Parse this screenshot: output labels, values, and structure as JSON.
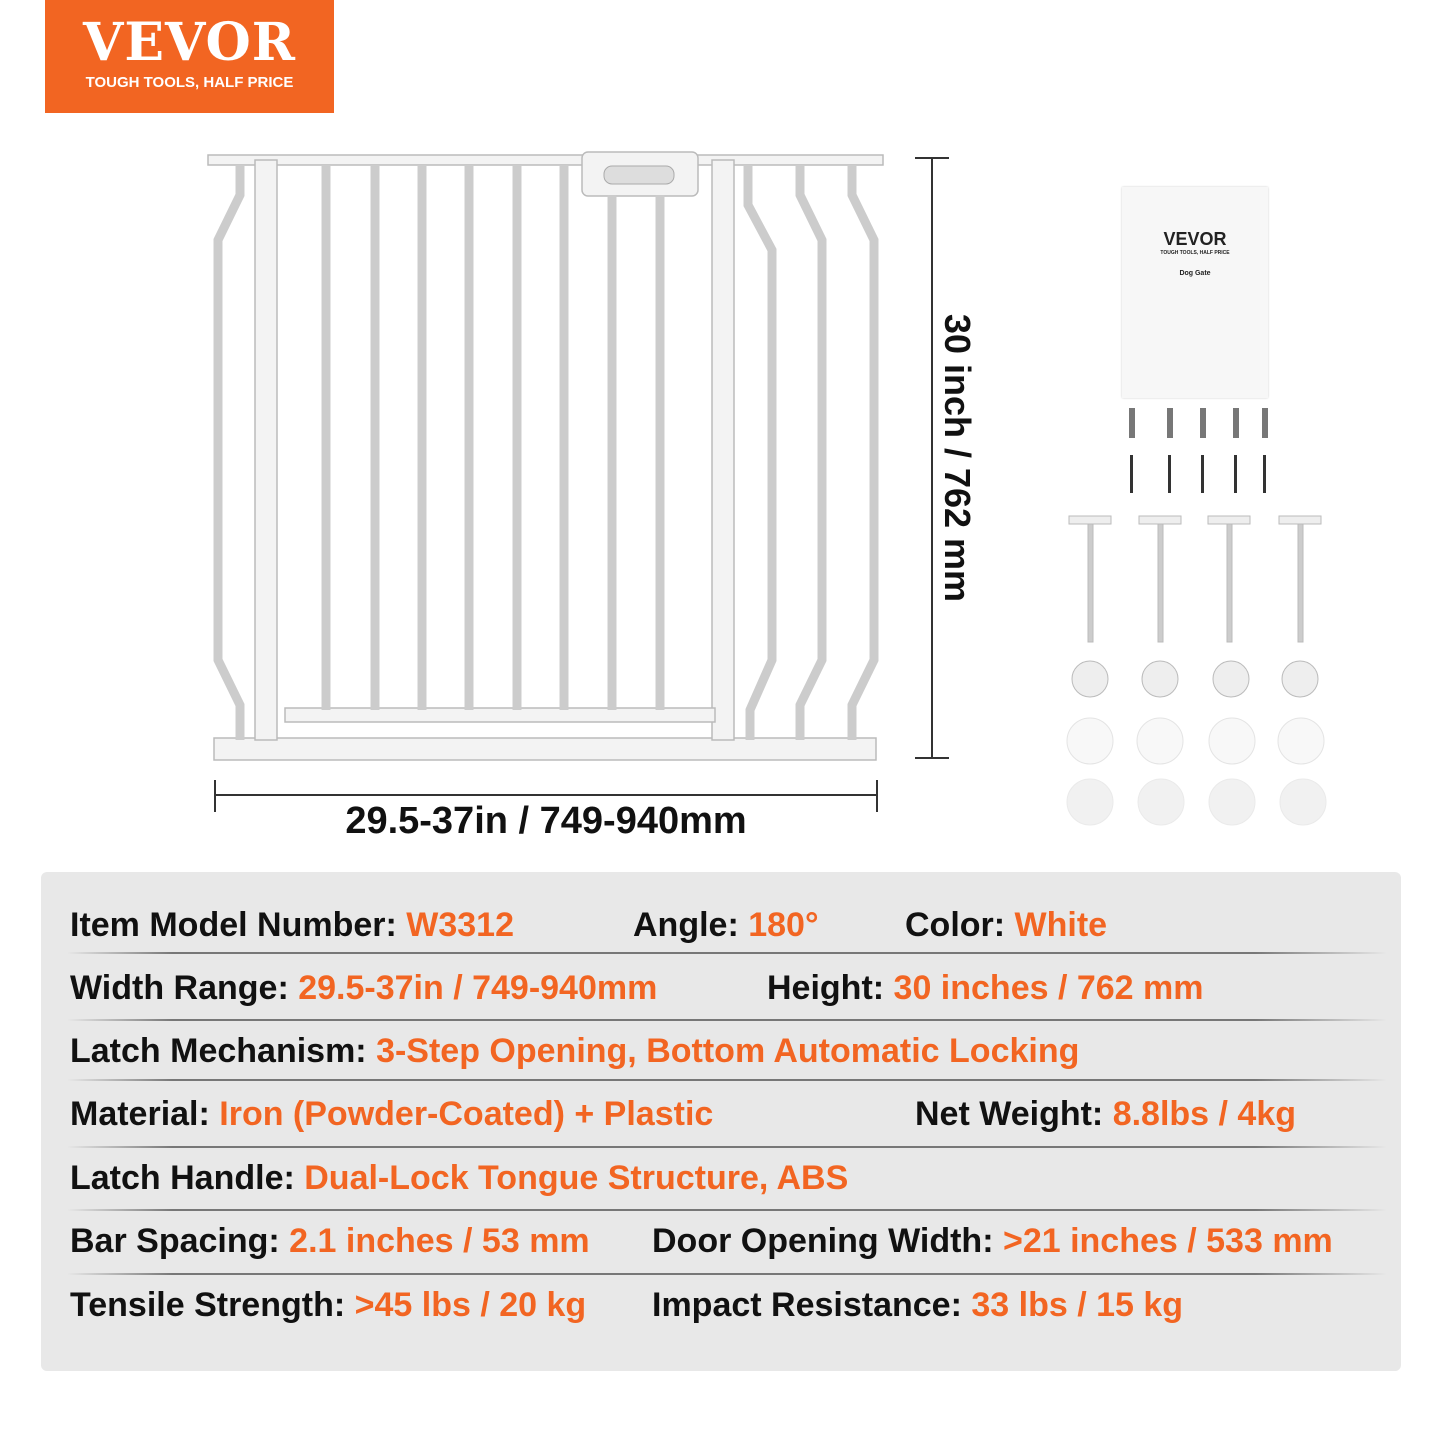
{
  "logo": {
    "brand": "VEVOR",
    "tagline": "TOUGH TOOLS, HALF PRICE"
  },
  "dimensions": {
    "width": "29.5-37in / 749-940mm",
    "height": "30 inch / 762 mm"
  },
  "manual": {
    "brand": "VEVOR",
    "tagline": "TOUGH TOOLS, HALF PRICE",
    "title": "Dog Gate"
  },
  "colors": {
    "brand_orange": "#f26522",
    "panel_bg": "#e8e8e8"
  },
  "specs": [
    [
      {
        "label": "Item Model Number: ",
        "value": "W3312"
      },
      {
        "label": "Angle: ",
        "value": "180°"
      },
      {
        "label": "Color: ",
        "value": "White"
      }
    ],
    [
      {
        "label": "Width Range: ",
        "value": "29.5-37in / 749-940mm"
      },
      {
        "label": "Height: ",
        "value": "30 inches / 762 mm"
      }
    ],
    [
      {
        "label": "Latch Mechanism: ",
        "value": "3-Step Opening, Bottom Automatic Locking"
      }
    ],
    [
      {
        "label": "Material: ",
        "value": "Iron (Powder-Coated) + Plastic"
      },
      {
        "label": "Net Weight: ",
        "value": "8.8lbs / 4kg"
      }
    ],
    [
      {
        "label": "Latch Handle: ",
        "value": "Dual-Lock Tongue Structure, ABS"
      }
    ],
    [
      {
        "label": "Bar Spacing: ",
        "value": "2.1 inches / 53 mm"
      },
      {
        "label": "Door Opening Width: ",
        "value": ">21 inches / 533 mm"
      }
    ],
    [
      {
        "label": "Tensile Strength: ",
        "value": ">45 lbs / 20 kg"
      },
      {
        "label": "Impact Resistance: ",
        "value": "33 lbs / 15 kg"
      }
    ]
  ]
}
